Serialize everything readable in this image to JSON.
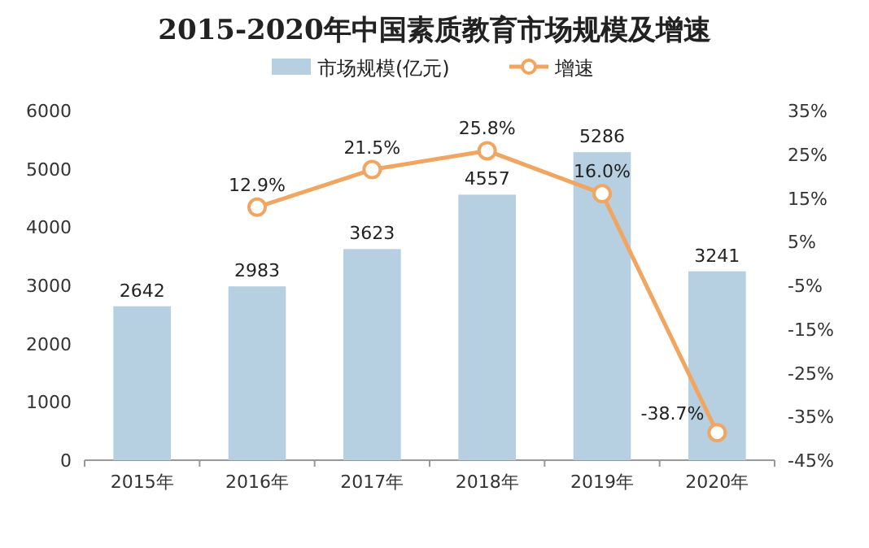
{
  "chart_data": {
    "type": "bar",
    "title": "2015-2020年中国素质教育市场规模及增速",
    "categories": [
      "2015年",
      "2016年",
      "2017年",
      "2018年",
      "2019年",
      "2020年"
    ],
    "series": [
      {
        "name": "市场规模(亿元)",
        "color": "#b7d0e1",
        "values": [
          2642,
          2983,
          3623,
          4557,
          5286,
          3241
        ],
        "value_labels": [
          "2642",
          "2983",
          "3623",
          "4557",
          "5286",
          "3241"
        ]
      },
      {
        "type": "line",
        "name": "增速",
        "color": "#f0a561",
        "axis": "y2",
        "marker": "circle",
        "values": [
          null,
          12.9,
          21.5,
          25.8,
          16.0,
          -38.7
        ],
        "value_labels": [
          null,
          "12.9%",
          "21.5%",
          "25.8%",
          "16.0%",
          "-38.7%"
        ]
      }
    ],
    "ylim": [
      0,
      6000
    ],
    "yticks": [
      0,
      1000,
      2000,
      3000,
      4000,
      5000,
      6000
    ],
    "y2lim": [
      -45,
      35
    ],
    "y2ticks": [
      {
        "value": -45,
        "label": "-45%"
      },
      {
        "value": -35,
        "label": "-35%"
      },
      {
        "value": -25,
        "label": "-25%"
      },
      {
        "value": -15,
        "label": "-15%"
      },
      {
        "value": -5,
        "label": "-5%"
      },
      {
        "value": 5,
        "label": "5%"
      },
      {
        "value": 15,
        "label": "15%"
      },
      {
        "value": 25,
        "label": "25%"
      },
      {
        "value": 35,
        "label": "35%"
      }
    ],
    "legend": "top"
  }
}
